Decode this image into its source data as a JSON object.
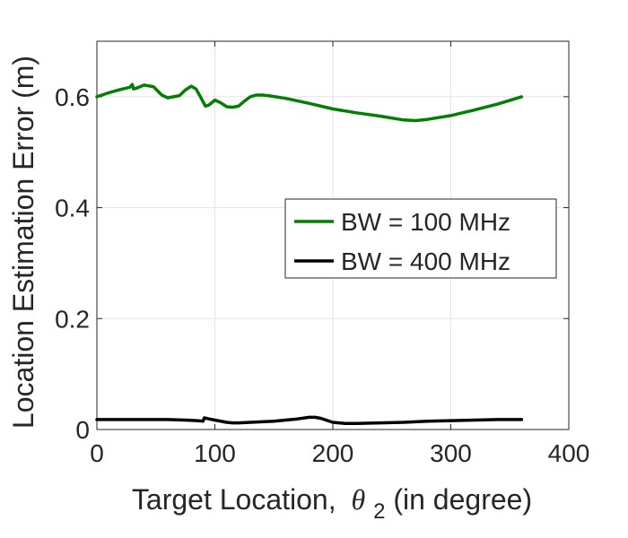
{
  "chart_data": {
    "type": "line",
    "xlabel": "Target Location,",
    "xlabel_symbol": "θ",
    "xlabel_subscript": "2",
    "xlabel_suffix": " (in degree)",
    "ylabel": "Location Estimation Error (m)",
    "xlim": [
      0,
      400
    ],
    "ylim": [
      0,
      0.7
    ],
    "xticks": [
      0,
      100,
      200,
      300,
      400
    ],
    "yticks": [
      0,
      0.2,
      0.4,
      0.6
    ],
    "xtick_labels": [
      "0",
      "100",
      "200",
      "300",
      "400"
    ],
    "ytick_labels": [
      "0",
      "0.2",
      "0.4",
      "0.6"
    ],
    "grid": true,
    "legend_position": "right-middle",
    "series": [
      {
        "name": "BW = 100 MHz",
        "color": "#007f00",
        "x": [
          0,
          10,
          20,
          28,
          30,
          31,
          33,
          40,
          48,
          55,
          60,
          65,
          70,
          75,
          80,
          84,
          88,
          92,
          95,
          100,
          105,
          110,
          115,
          120,
          125,
          130,
          135,
          140,
          145,
          160,
          180,
          200,
          220,
          240,
          260,
          270,
          280,
          300,
          320,
          340,
          360
        ],
        "y": [
          0.6,
          0.607,
          0.613,
          0.617,
          0.622,
          0.614,
          0.615,
          0.621,
          0.618,
          0.603,
          0.598,
          0.6,
          0.602,
          0.612,
          0.619,
          0.614,
          0.599,
          0.583,
          0.585,
          0.594,
          0.589,
          0.582,
          0.581,
          0.583,
          0.592,
          0.6,
          0.603,
          0.603,
          0.602,
          0.597,
          0.588,
          0.578,
          0.571,
          0.565,
          0.558,
          0.557,
          0.559,
          0.566,
          0.576,
          0.587,
          0.6
        ]
      },
      {
        "name": "BW = 400 MHz",
        "color": "#000000",
        "x": [
          0,
          20,
          40,
          60,
          75,
          85,
          90,
          91,
          93,
          95,
          100,
          110,
          115,
          120,
          130,
          150,
          170,
          180,
          185,
          190,
          200,
          210,
          220,
          240,
          260,
          280,
          300,
          320,
          340,
          360
        ],
        "y": [
          0.018,
          0.018,
          0.018,
          0.018,
          0.017,
          0.016,
          0.015,
          0.021,
          0.02,
          0.019,
          0.017,
          0.013,
          0.012,
          0.012,
          0.013,
          0.015,
          0.019,
          0.022,
          0.022,
          0.02,
          0.013,
          0.011,
          0.011,
          0.012,
          0.013,
          0.015,
          0.016,
          0.017,
          0.018,
          0.018
        ]
      }
    ]
  }
}
